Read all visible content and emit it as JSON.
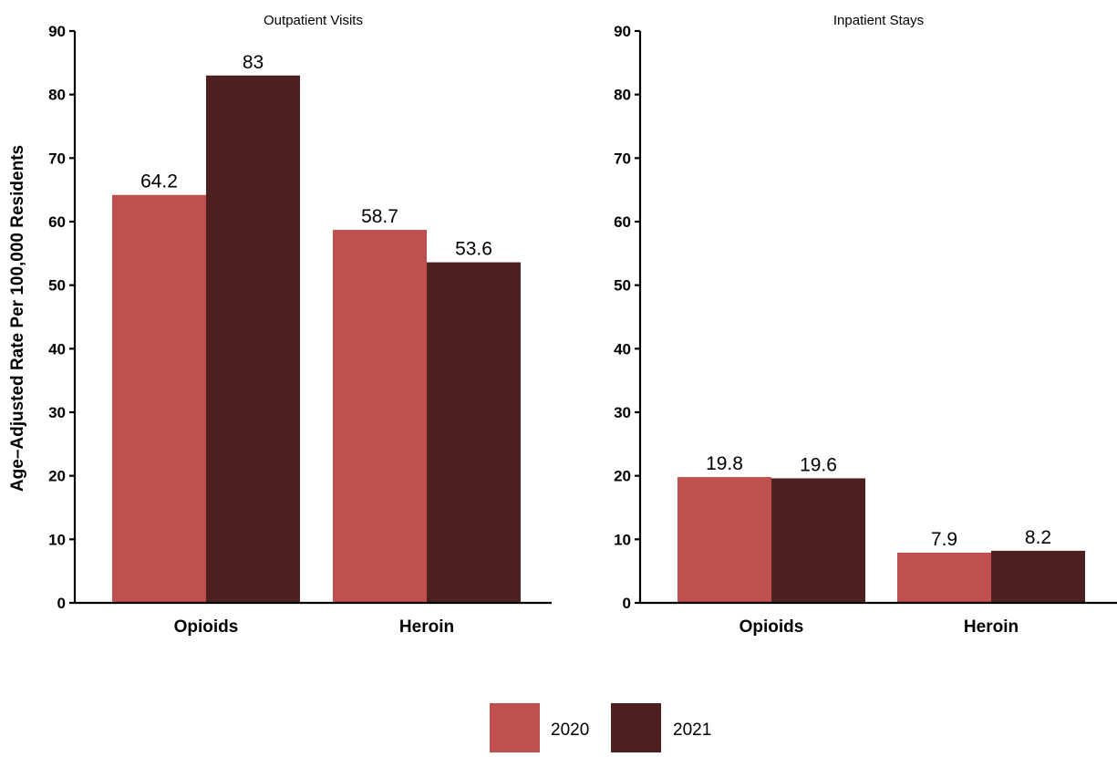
{
  "chart_data": {
    "type": "bar",
    "ylabel": "Age–Adjusted Rate Per 100,000 Residents",
    "ylim": [
      0,
      90
    ],
    "yticks": [
      0,
      10,
      20,
      30,
      40,
      50,
      60,
      70,
      80,
      90
    ],
    "categories": [
      "Opioids",
      "Heroin"
    ],
    "legend": {
      "placement": "bottom-center",
      "items": [
        {
          "name": "2020",
          "color": "#c0504d"
        },
        {
          "name": "2021",
          "color": "#4f2020"
        }
      ]
    },
    "panels": [
      {
        "title": "Outpatient Visits",
        "series": [
          {
            "name": "2020",
            "values": [
              64.2,
              58.7
            ],
            "labels": [
              "64.2",
              "58.7"
            ]
          },
          {
            "name": "2021",
            "values": [
              83,
              53.6
            ],
            "labels": [
              "83",
              "53.6"
            ]
          }
        ]
      },
      {
        "title": "Inpatient Stays",
        "series": [
          {
            "name": "2020",
            "values": [
              19.8,
              7.9
            ],
            "labels": [
              "19.8",
              "7.9"
            ]
          },
          {
            "name": "2021",
            "values": [
              19.6,
              8.2
            ],
            "labels": [
              "19.6",
              "8.2"
            ]
          }
        ]
      }
    ]
  }
}
